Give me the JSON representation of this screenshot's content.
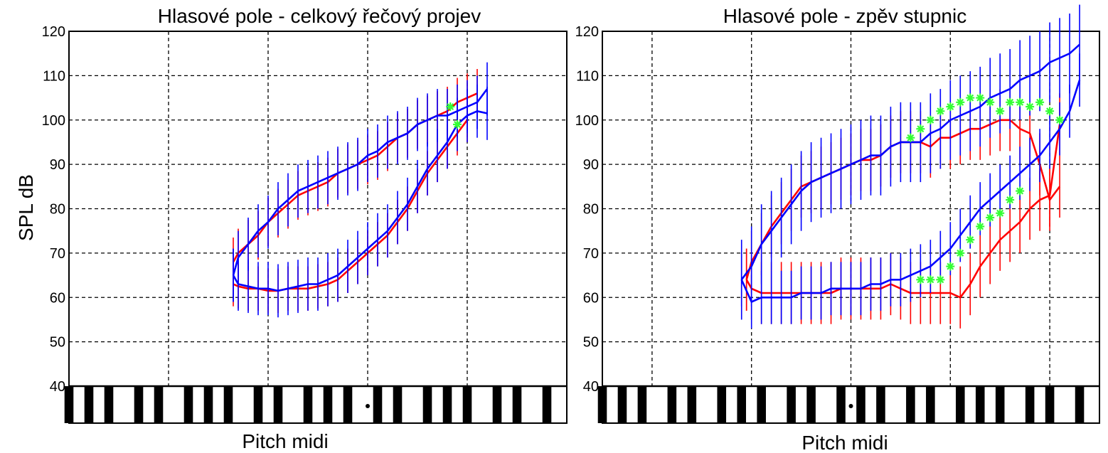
{
  "colors": {
    "series_a": "#ff0000",
    "series_b": "#0000ff",
    "marker": "#33ff33",
    "grid": "#000000",
    "key_black": "#000000",
    "key_white": "#ffffff"
  },
  "chart_data": [
    {
      "type": "line",
      "title": "Hlasové pole - celkový řečový projev",
      "xlabel": "Pitch midi",
      "ylabel": "SPL dB",
      "ylim": [
        40,
        120
      ],
      "yticks": [
        40,
        50,
        60,
        70,
        80,
        90,
        100,
        110,
        120
      ],
      "xlim": [
        30,
        80
      ],
      "xgrid": [
        40,
        50,
        60,
        70
      ],
      "grid": true,
      "keyboard_marker_pitch": 60,
      "series": [
        {
          "name": "red-upper",
          "color": "#ff0000",
          "x": [
            46.5,
            47,
            48,
            49,
            50,
            51,
            52,
            53,
            54,
            55,
            56,
            57,
            58,
            59,
            60,
            61,
            62,
            63,
            64,
            65,
            66,
            67,
            68,
            69,
            70,
            71
          ],
          "y": [
            68,
            70,
            72,
            74,
            77,
            79,
            81,
            83,
            84,
            85,
            86,
            88,
            89,
            90,
            91,
            92,
            94,
            96,
            97,
            99,
            100,
            101,
            102,
            104,
            105,
            106
          ],
          "err": 5.5
        },
        {
          "name": "red-lower",
          "color": "#ff0000",
          "x": [
            46.5,
            47,
            48,
            49,
            50,
            51,
            52,
            53,
            54,
            55,
            56,
            57,
            58,
            59,
            60,
            61,
            62,
            63,
            64,
            65,
            66,
            67,
            68,
            69,
            70
          ],
          "y": [
            63,
            62.5,
            62,
            62,
            61.5,
            61.5,
            62,
            62,
            62,
            62.5,
            63,
            64,
            66,
            68,
            70,
            72,
            74,
            77,
            80,
            84,
            88,
            91,
            94,
            97,
            100
          ],
          "err": 5
        },
        {
          "name": "blue-upper",
          "color": "#0000ff",
          "x": [
            46.5,
            47,
            48,
            49,
            50,
            51,
            52,
            53,
            54,
            55,
            56,
            57,
            58,
            59,
            60,
            61,
            62,
            63,
            64,
            65,
            66,
            67,
            68,
            69,
            70,
            71,
            72
          ],
          "y": [
            65,
            69,
            72,
            75,
            77,
            80,
            82,
            84,
            85,
            86,
            87,
            88,
            89,
            90,
            92,
            93,
            95,
            96,
            97,
            99,
            100,
            101,
            101,
            102,
            103,
            104,
            107
          ],
          "err": 6
        },
        {
          "name": "blue-lower",
          "color": "#0000ff",
          "x": [
            46.5,
            47,
            48,
            49,
            50,
            51,
            52,
            53,
            54,
            55,
            56,
            57,
            58,
            59,
            60,
            61,
            62,
            63,
            64,
            65,
            66,
            67,
            68,
            69,
            70,
            71,
            72
          ],
          "y": [
            65,
            63,
            62.5,
            62,
            62,
            61.5,
            62,
            62.5,
            63,
            63,
            64,
            65,
            67,
            69,
            71,
            73,
            75,
            78,
            81,
            85,
            89,
            92,
            95,
            99,
            101,
            102,
            101.5
          ],
          "err": 6
        }
      ],
      "markers": {
        "name": "green-stars",
        "color": "#33ff33",
        "x": [
          68.3,
          69
        ],
        "y": [
          103,
          99
        ]
      }
    },
    {
      "type": "line",
      "title": "Hlasové pole - zpěv stupnic",
      "xlabel": "Pitch midi",
      "ylabel": "",
      "ylim": [
        40,
        120
      ],
      "yticks": [
        40,
        50,
        60,
        70,
        80,
        90,
        100,
        110,
        120
      ],
      "xlim": [
        30,
        80
      ],
      "xgrid": [
        35,
        45,
        55,
        65,
        75
      ],
      "grid": true,
      "keyboard_marker_pitch": 55,
      "series": [
        {
          "name": "red-upper",
          "color": "#ff0000",
          "x": [
            44.5,
            45,
            46,
            47,
            48,
            49,
            50,
            51,
            52,
            53,
            54,
            55,
            56,
            57,
            58,
            59,
            60,
            61,
            62,
            63,
            64,
            65,
            66,
            67,
            68,
            69,
            70,
            71,
            72,
            73,
            74,
            75,
            76
          ],
          "y": [
            64,
            68,
            72,
            76,
            79,
            82,
            85,
            86,
            87,
            88,
            89,
            90,
            91,
            91,
            92,
            94,
            95,
            95,
            95,
            94,
            96,
            96,
            97,
            98,
            98,
            99,
            100,
            100,
            98,
            97,
            90,
            82,
            85
          ],
          "err": 7
        },
        {
          "name": "red-lower",
          "color": "#ff0000",
          "x": [
            44.5,
            45,
            46,
            47,
            48,
            49,
            50,
            51,
            52,
            53,
            54,
            55,
            56,
            57,
            58,
            59,
            60,
            61,
            62,
            63,
            64,
            65,
            66,
            67,
            68,
            69,
            70,
            71,
            72,
            73,
            74,
            75,
            76
          ],
          "y": [
            64,
            62,
            61,
            61,
            61,
            61,
            61,
            61,
            61,
            61,
            62,
            62,
            62,
            62,
            62,
            63,
            62,
            61,
            61,
            61,
            61,
            61,
            60,
            63,
            67,
            70,
            73,
            75,
            77,
            80,
            82,
            83,
            99
          ],
          "err": 7
        },
        {
          "name": "blue-upper",
          "color": "#0000ff",
          "x": [
            44,
            45,
            46,
            47,
            48,
            49,
            50,
            51,
            52,
            53,
            54,
            55,
            56,
            57,
            58,
            59,
            60,
            61,
            62,
            63,
            64,
            65,
            66,
            67,
            68,
            69,
            70,
            71,
            72,
            73,
            74,
            75,
            76,
            77,
            78
          ],
          "y": [
            64,
            67,
            72,
            75,
            78,
            81,
            84,
            86,
            87,
            88,
            89,
            90,
            91,
            92,
            92,
            94,
            95,
            95,
            95,
            97,
            98,
            100,
            101,
            102,
            103,
            105,
            106,
            107,
            109,
            110,
            111,
            113,
            114,
            115,
            117
          ],
          "err": 9
        },
        {
          "name": "blue-lower",
          "color": "#0000ff",
          "x": [
            44,
            45,
            46,
            47,
            48,
            49,
            50,
            51,
            52,
            53,
            54,
            55,
            56,
            57,
            58,
            59,
            60,
            61,
            62,
            63,
            64,
            65,
            66,
            67,
            68,
            69,
            70,
            71,
            72,
            73,
            74,
            75,
            76,
            77,
            78
          ],
          "y": [
            64,
            59,
            60,
            60,
            60,
            60,
            61,
            61,
            61,
            62,
            62,
            62,
            62,
            63,
            63,
            64,
            64,
            65,
            66,
            67,
            69,
            71,
            74,
            77,
            80,
            82,
            84,
            86,
            88,
            90,
            92,
            95,
            98,
            102,
            109
          ],
          "err": 6
        }
      ],
      "markers": {
        "name": "green-stars",
        "color": "#33ff33",
        "x": [
          61,
          62,
          63,
          64,
          65,
          66,
          67,
          68,
          69,
          70,
          71,
          72,
          73,
          74,
          75,
          76,
          62,
          63,
          64,
          65,
          66,
          67,
          68,
          69,
          70,
          71,
          72
        ],
        "y": [
          96,
          98,
          100,
          102,
          103,
          104,
          105,
          105,
          104,
          102,
          104,
          104,
          103,
          104,
          102,
          100,
          64,
          64,
          64,
          67,
          70,
          73,
          76,
          78,
          79,
          82,
          84
        ]
      }
    }
  ]
}
